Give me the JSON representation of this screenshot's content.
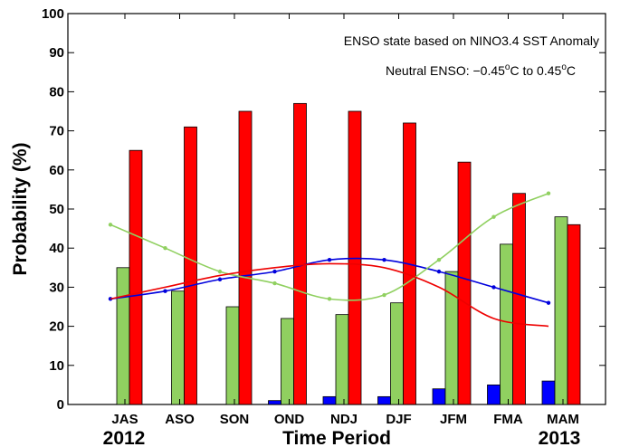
{
  "chart_data": {
    "type": "bar",
    "categories": [
      "JAS",
      "ASO",
      "SON",
      "OND",
      "NDJ",
      "DJF",
      "JFM",
      "FMA",
      "MAM"
    ],
    "years": {
      "start": "2012",
      "end": "2013"
    },
    "xlabel": "Time Period",
    "ylabel": "Probability (%)",
    "ylim": [
      0,
      100
    ],
    "yticks": [
      0,
      10,
      20,
      30,
      40,
      50,
      60,
      70,
      80,
      90,
      100
    ],
    "annotations": {
      "line1": "ENSO state based on NINO3.4 SST Anomaly",
      "line2_prefix": "Neutral ENSO: −0.45",
      "line2_sup1": "o",
      "line2_mid": "C to 0.45",
      "line2_sup2": "o",
      "line2_suffix": "C"
    },
    "series": [
      {
        "values": [
          0,
          0,
          0,
          1,
          2,
          2,
          4,
          5,
          6
        ],
        "color": "#0000ff"
      },
      {
        "values": [
          35,
          29,
          25,
          22,
          23,
          26,
          34,
          41,
          48
        ],
        "color": "#90d060"
      },
      {
        "values": [
          65,
          71,
          75,
          77,
          75,
          72,
          62,
          54,
          46
        ],
        "color": "#ff0000"
      }
    ],
    "lines": [
      {
        "values": [
          27,
          29,
          32,
          34,
          37,
          37,
          34,
          30,
          26
        ],
        "color": "#0000dd",
        "markers": true
      },
      {
        "values": [
          46,
          40,
          34,
          31,
          27,
          28,
          37,
          48,
          54
        ],
        "color": "#90d060",
        "markers": true
      },
      {
        "values": [
          27,
          30,
          33,
          35,
          36,
          35,
          30,
          22,
          20
        ],
        "color": "#ee0000",
        "markers": false
      }
    ],
    "grid": false
  }
}
